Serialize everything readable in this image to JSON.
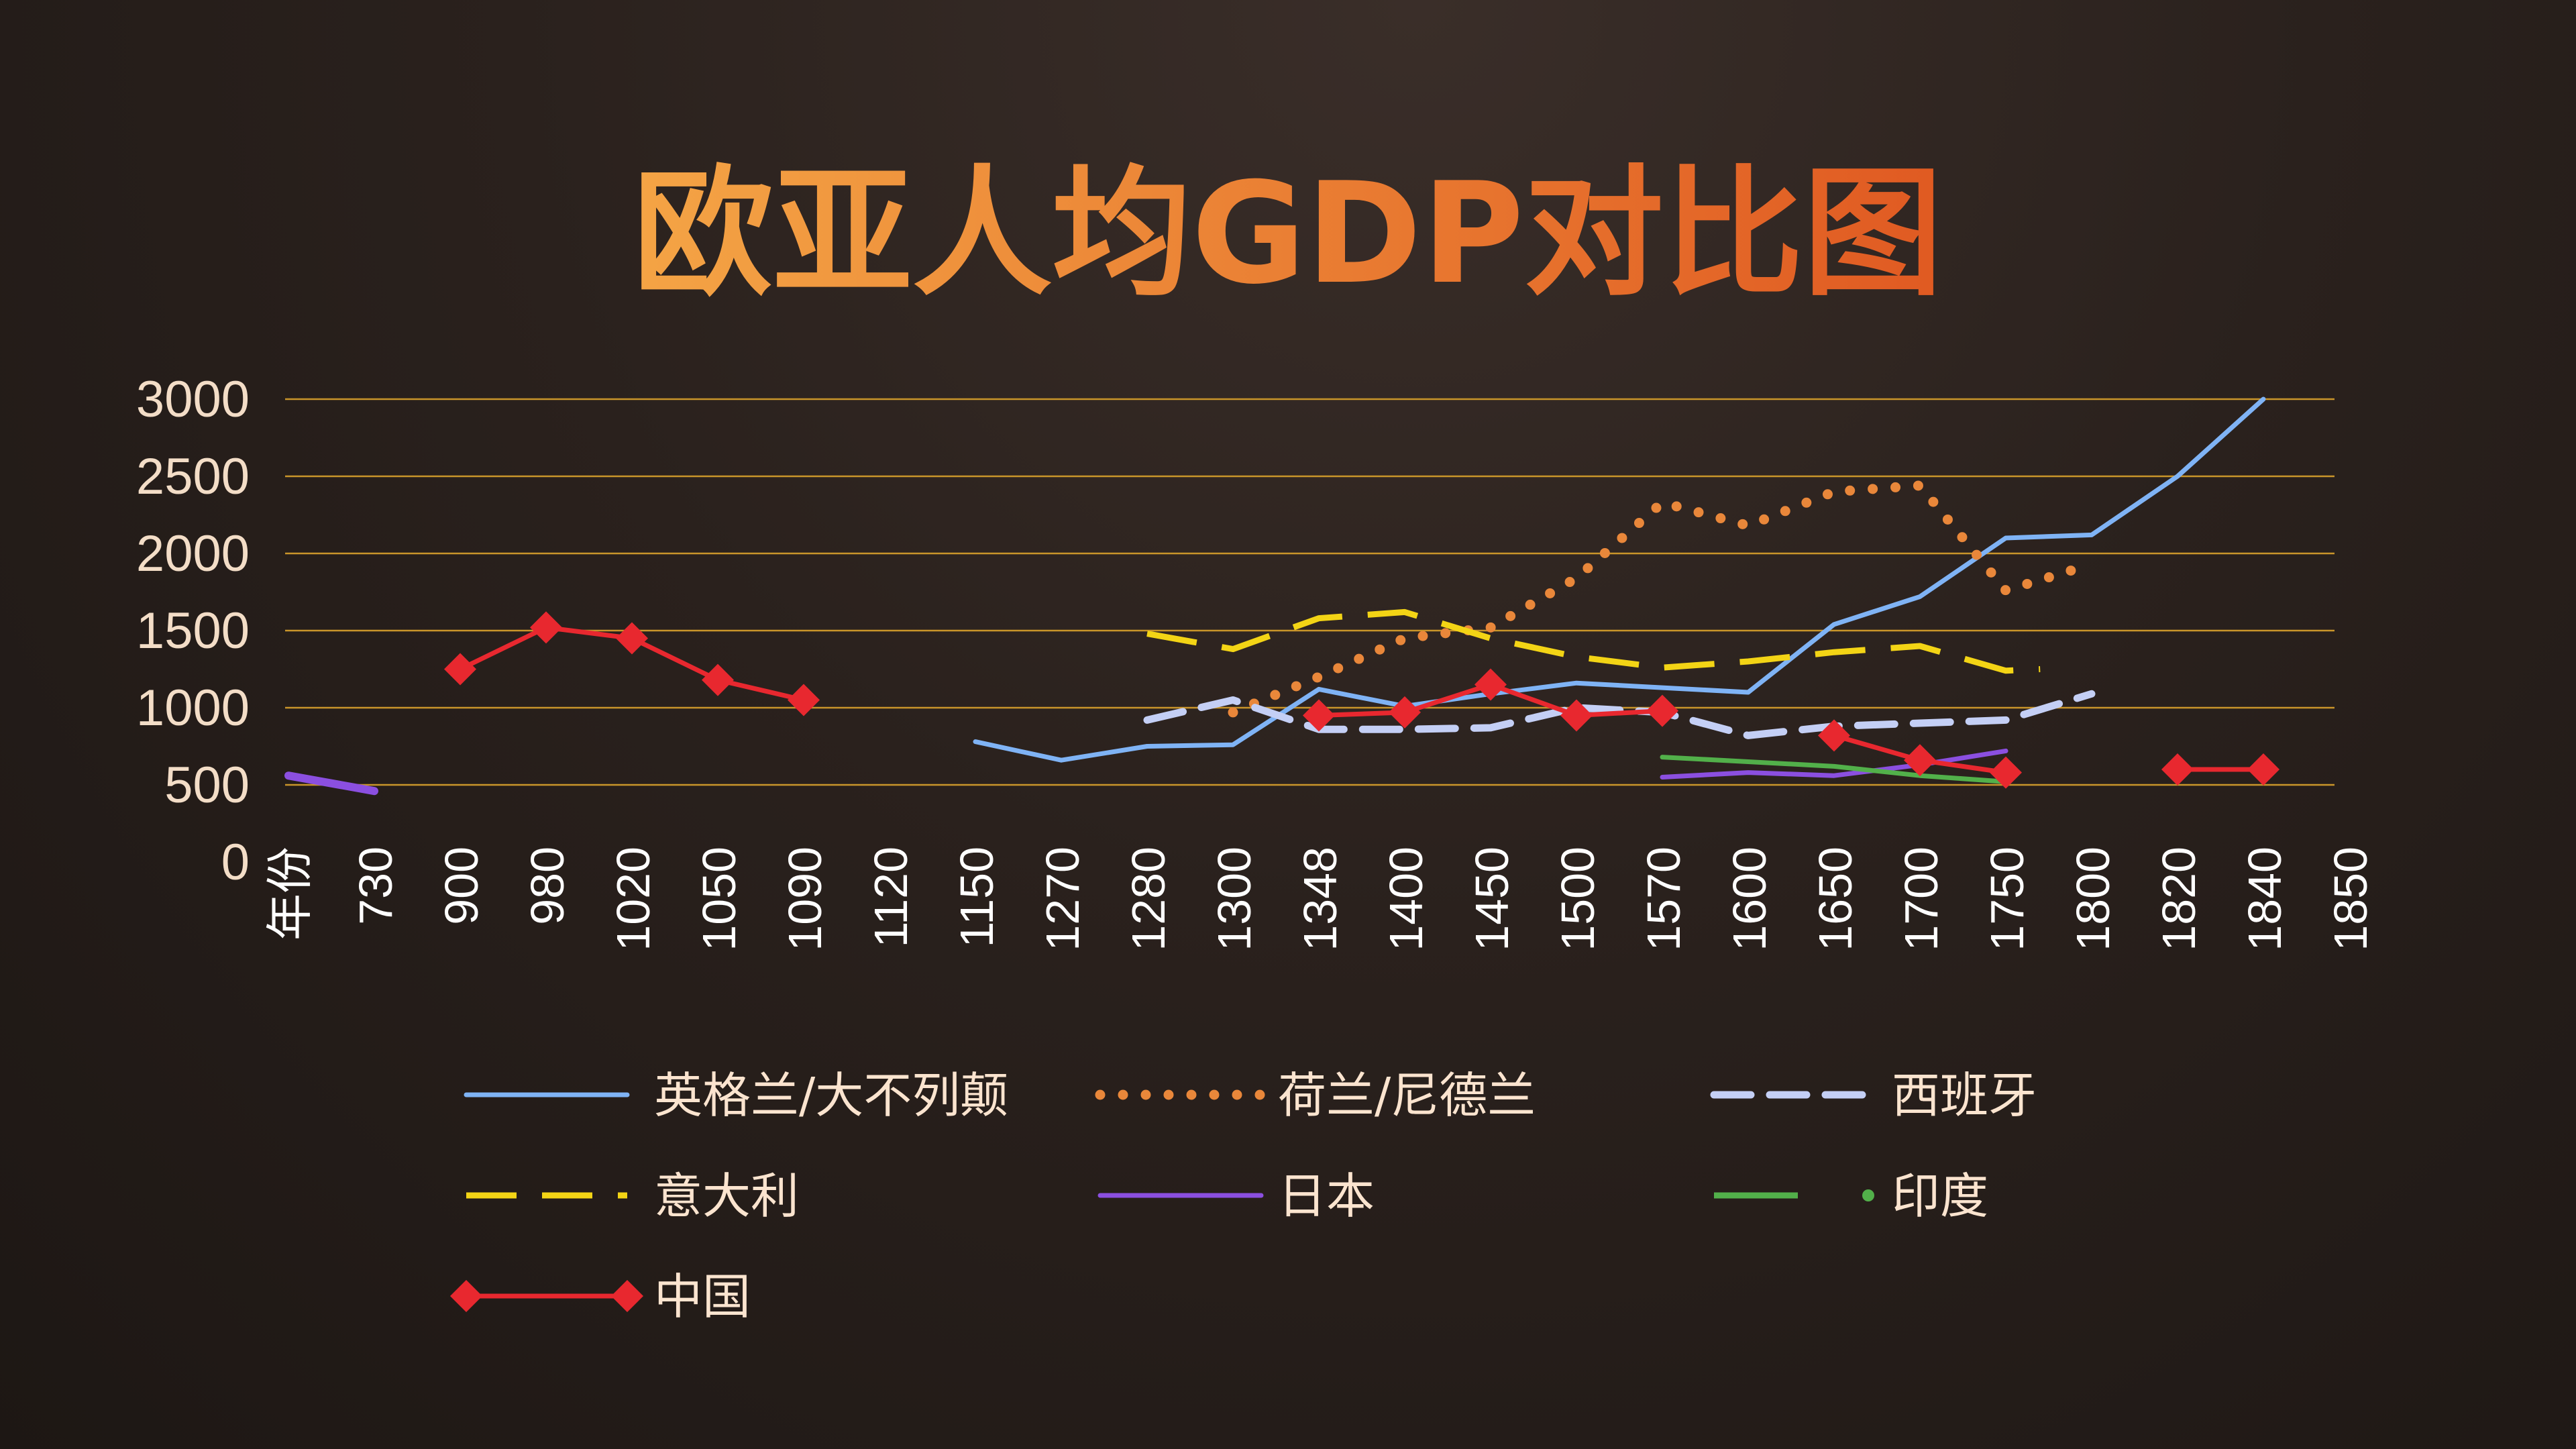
{
  "slide": {
    "title": "欧亚人均GDP对比图"
  },
  "colors": {
    "title_gradient": [
      "#f4a445",
      "#e05a22"
    ],
    "gridline": "#c9952a",
    "england": "#7fb3f5",
    "netherlands": "#e9873a",
    "spain": "#c4cff5",
    "italy": "#f3d415",
    "japan": "#8b4fe0",
    "india": "#52b04a",
    "china": "#e8282f"
  },
  "chart_data": {
    "type": "line",
    "title": "欧亚人均GDP对比图",
    "xlabel": "",
    "ylabel": "",
    "categories": [
      "年份",
      "730",
      "900",
      "980",
      "1020",
      "1050",
      "1090",
      "1120",
      "1150",
      "1270",
      "1280",
      "1300",
      "1348",
      "1400",
      "1450",
      "1500",
      "1570",
      "1600",
      "1650",
      "1700",
      "1750",
      "1800",
      "1820",
      "1840",
      "1850"
    ],
    "y_ticks": [
      "0",
      "500",
      "1000",
      "1500",
      "2000",
      "2500",
      "3000"
    ],
    "ylim": [
      0,
      3000
    ],
    "grid": true,
    "legend_position": "bottom",
    "series": [
      {
        "key": "england",
        "name": "英格兰/大不列颠",
        "style": "solid",
        "marker": "none",
        "points": [
          [
            8,
            780
          ],
          [
            9,
            660
          ],
          [
            10,
            750
          ],
          [
            11,
            760
          ],
          [
            12,
            1120
          ],
          [
            13,
            1010
          ],
          [
            14,
            1090
          ],
          [
            15,
            1160
          ],
          [
            16,
            1130
          ],
          [
            17,
            1100
          ],
          [
            18,
            1540
          ],
          [
            19,
            1720
          ],
          [
            20,
            2100
          ],
          [
            21,
            2120
          ],
          [
            22,
            2500
          ],
          [
            23,
            3000
          ]
        ]
      },
      {
        "key": "netherlands",
        "name": "荷兰/尼德兰",
        "style": "dotted",
        "marker": "none",
        "points": [
          [
            11,
            970
          ],
          [
            12,
            1200
          ],
          [
            13,
            1450
          ],
          [
            14,
            1520
          ],
          [
            15,
            1840
          ],
          [
            16,
            2330
          ],
          [
            17,
            2180
          ],
          [
            18,
            2400
          ],
          [
            19,
            2440
          ],
          [
            20,
            1760
          ],
          [
            21,
            1930
          ]
        ]
      },
      {
        "key": "spain",
        "name": "西班牙",
        "style": "dashed",
        "marker": "none",
        "points": [
          [
            10,
            920
          ],
          [
            11,
            1050
          ],
          [
            12,
            860
          ],
          [
            13,
            860
          ],
          [
            14,
            870
          ],
          [
            15,
            1000
          ],
          [
            16,
            970
          ],
          [
            17,
            820
          ],
          [
            18,
            880
          ],
          [
            19,
            900
          ],
          [
            20,
            920
          ],
          [
            21,
            1090
          ]
        ]
      },
      {
        "key": "italy",
        "name": "意大利",
        "style": "longdash",
        "marker": "none",
        "points": [
          [
            10,
            1480
          ],
          [
            11,
            1380
          ],
          [
            12,
            1580
          ],
          [
            13,
            1620
          ],
          [
            14,
            1450
          ],
          [
            15,
            1330
          ],
          [
            16,
            1260
          ],
          [
            17,
            1300
          ],
          [
            18,
            1360
          ],
          [
            19,
            1400
          ],
          [
            20,
            1240
          ],
          [
            20.4,
            1250
          ]
        ]
      },
      {
        "key": "japan",
        "name": "日本",
        "style": "solid",
        "marker": "none",
        "points": [
          [
            0,
            560
          ],
          [
            1,
            460
          ]
        ]
      },
      {
        "key": "japan_late",
        "name": "",
        "style": "solid",
        "marker": "none",
        "color_key": "japan",
        "points": [
          [
            16,
            550
          ],
          [
            17,
            580
          ],
          [
            18,
            560
          ],
          [
            19,
            630
          ],
          [
            20,
            720
          ]
        ]
      },
      {
        "key": "india",
        "name": "印度",
        "style": "solid",
        "marker": "none",
        "points": [
          [
            16,
            680
          ],
          [
            17,
            650
          ],
          [
            18,
            620
          ],
          [
            19,
            560
          ],
          [
            20,
            520
          ]
        ]
      },
      {
        "key": "china",
        "name": "中国",
        "style": "solid",
        "marker": "diamond",
        "points": [
          [
            2,
            1250
          ],
          [
            3,
            1520
          ],
          [
            4,
            1450
          ],
          [
            5,
            1180
          ],
          [
            6,
            1050
          ]
        ]
      },
      {
        "key": "china_mid",
        "name": "",
        "style": "solid",
        "marker": "diamond",
        "color_key": "china",
        "points": [
          [
            12,
            950
          ],
          [
            13,
            970
          ],
          [
            14,
            1150
          ],
          [
            15,
            950
          ],
          [
            16,
            980
          ]
        ]
      },
      {
        "key": "china_late",
        "name": "",
        "style": "solid",
        "marker": "diamond",
        "color_key": "china",
        "points": [
          [
            18,
            820
          ],
          [
            19,
            660
          ],
          [
            20,
            580
          ]
        ]
      },
      {
        "key": "china_qing",
        "name": "",
        "style": "solid",
        "marker": "diamond",
        "color_key": "china",
        "points": [
          [
            22,
            600
          ],
          [
            23,
            600
          ]
        ]
      }
    ]
  },
  "legend": [
    {
      "key": "england",
      "label": "英格兰/大不列颠"
    },
    {
      "key": "netherlands",
      "label": "荷兰/尼德兰"
    },
    {
      "key": "spain",
      "label": "西班牙"
    },
    {
      "key": "italy",
      "label": "意大利"
    },
    {
      "key": "japan",
      "label": "日本"
    },
    {
      "key": "india",
      "label": "印度"
    },
    {
      "key": "china",
      "label": "中国"
    }
  ]
}
